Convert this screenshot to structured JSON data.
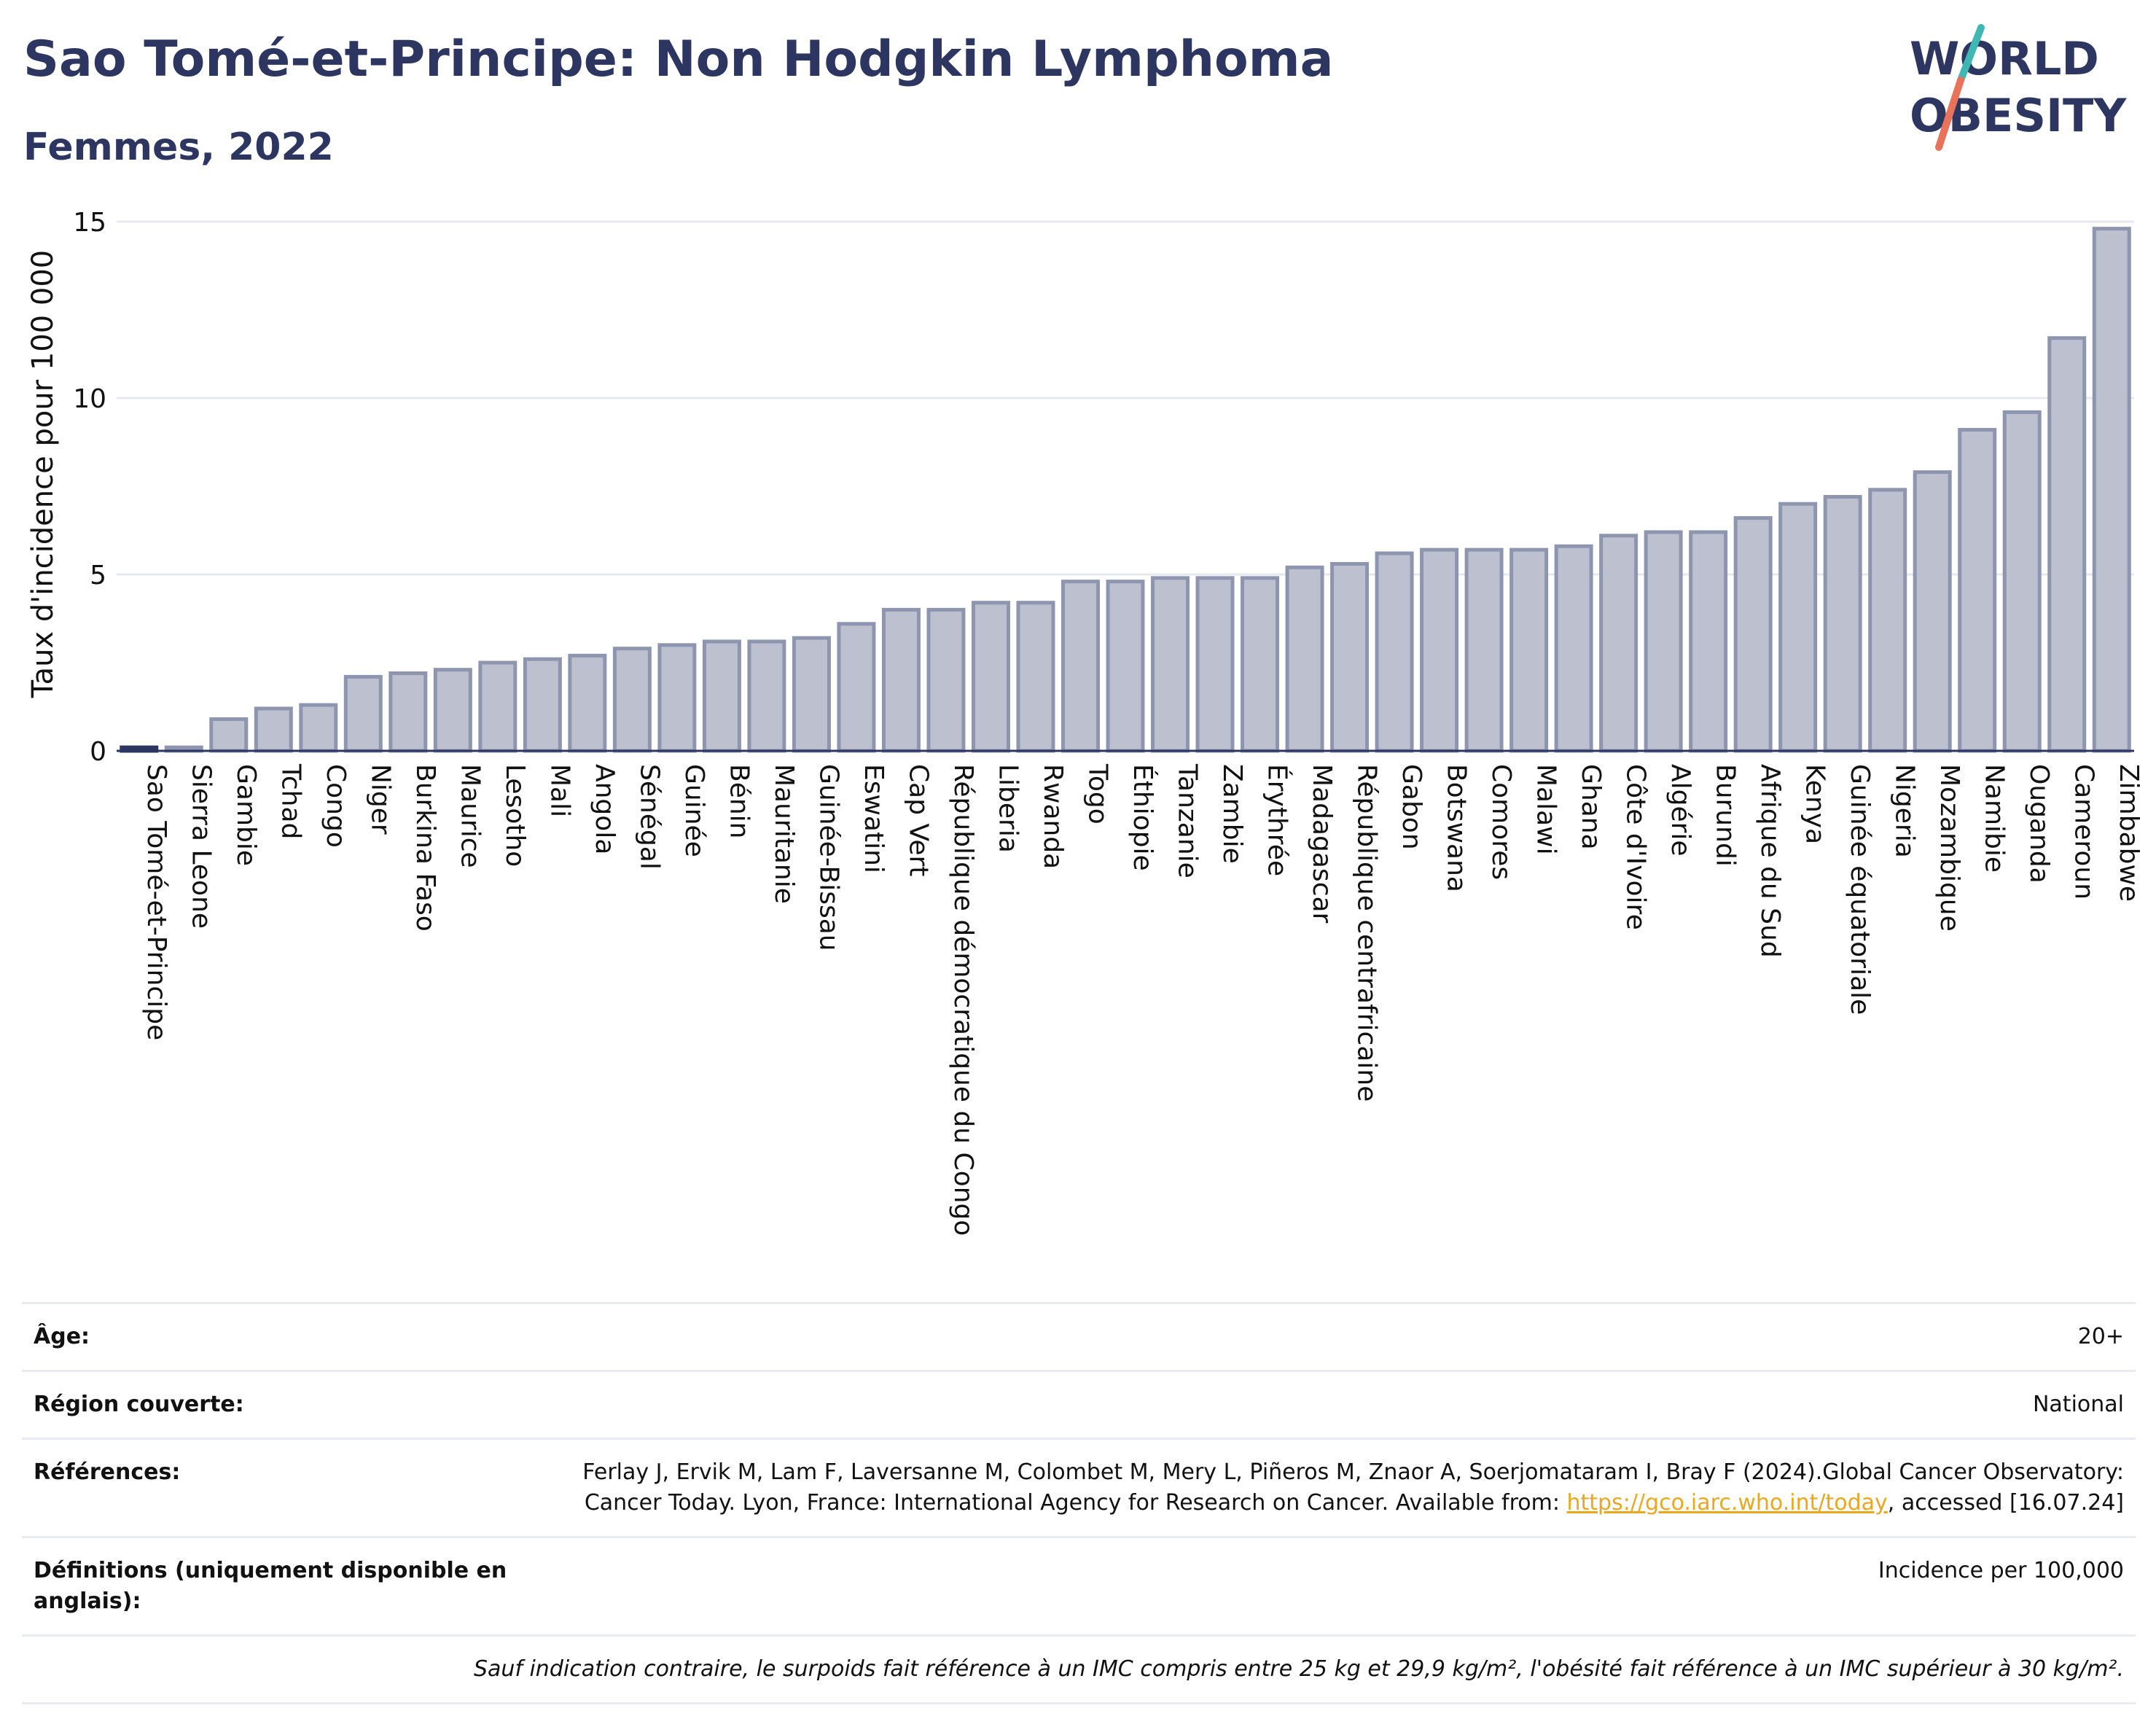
{
  "header": {
    "title": "Sao Tomé-et-Principe: Non Hodgkin Lymphoma",
    "subtitle": "Femmes, 2022"
  },
  "logo": {
    "line1": "WORLD",
    "line2": "OBESITY",
    "colors": {
      "text": "#2d3561",
      "slash_top": "#3fb8b4",
      "slash_bottom": "#e8735a"
    }
  },
  "chart_data": {
    "type": "bar",
    "ylabel": "Taux d'incidence pour 100 000",
    "ylim": [
      0,
      15
    ],
    "yticks": [
      0,
      5,
      10,
      15
    ],
    "grid": true,
    "highlight": "Sao Tomé-et-Principe",
    "colors": {
      "bar_fill": "#bcc0cf",
      "bar_stroke": "#8e95ae",
      "highlight": "#2d3561",
      "grid": "#e6e8ee"
    },
    "categories": [
      "Sao Tomé-et-Principe",
      "Sierra Leone",
      "Gambie",
      "Tchad",
      "Congo",
      "Niger",
      "Burkina Faso",
      "Maurice",
      "Lesotho",
      "Mali",
      "Angola",
      "Sénégal",
      "Guinée",
      "Bénin",
      "Mauritanie",
      "Guinée-Bissau",
      "Eswatini",
      "Cap Vert",
      "République démocratique du Congo",
      "Liberia",
      "Rwanda",
      "Togo",
      "Éthiopie",
      "Tanzanie",
      "Zambie",
      "Érythrée",
      "Madagascar",
      "République centrafricaine",
      "Gabon",
      "Botswana",
      "Comores",
      "Malawi",
      "Ghana",
      "Côte d'Ivoire",
      "Algérie",
      "Burundi",
      "Afrique du Sud",
      "Kenya",
      "Guinée équatoriale",
      "Nigeria",
      "Mozambique",
      "Namibie",
      "Ouganda",
      "Cameroun",
      "Zimbabwe"
    ],
    "values": [
      0.1,
      0.1,
      0.9,
      1.2,
      1.3,
      2.1,
      2.2,
      2.3,
      2.5,
      2.6,
      2.7,
      2.9,
      3.0,
      3.1,
      3.1,
      3.2,
      3.6,
      4.0,
      4.0,
      4.2,
      4.2,
      4.8,
      4.8,
      4.9,
      4.9,
      4.9,
      5.2,
      5.3,
      5.6,
      5.7,
      5.7,
      5.7,
      5.8,
      6.1,
      6.2,
      6.2,
      6.6,
      7.0,
      7.2,
      7.4,
      7.9,
      9.1,
      9.6,
      11.7,
      14.8
    ]
  },
  "info": {
    "age_label": "Âge:",
    "age_value": "20+",
    "region_label": "Région couverte:",
    "region_value": "National",
    "refs_label": "Références:",
    "refs_text": "Ferlay J, Ervik M, Lam F, Laversanne M, Colombet M, Mery L, Piñeros M, Znaor A, Soerjomataram I, Bray F (2024).Global Cancer Observatory: Cancer Today. Lyon, France: International Agency for Research on Cancer. Available from: ",
    "refs_link": "https://gco.iarc.who.int/today",
    "refs_tail": ", accessed [16.07.24]",
    "defs_label": "Définitions (uniquement disponible en anglais):",
    "defs_value": "Incidence per 100,000",
    "note": "Sauf indication contraire, le surpoids fait référence à un IMC compris entre 25 kg et 29,9 kg/m², l'obésité fait référence à un IMC supérieur à 30 kg/m²."
  }
}
